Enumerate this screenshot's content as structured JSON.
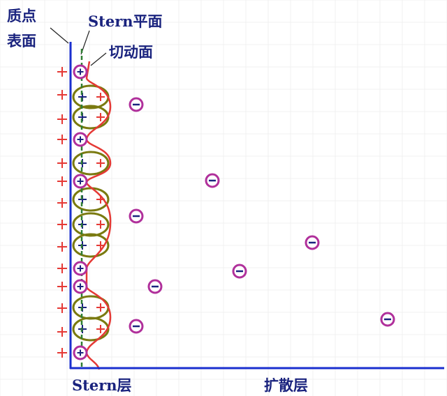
{
  "labels": {
    "surface": [
      "质点",
      "表面"
    ],
    "stern_plane": "Stern平面",
    "shear_plane": "切动面",
    "stern_layer": "Stern层",
    "diffuse_layer": "扩散层"
  }
}
